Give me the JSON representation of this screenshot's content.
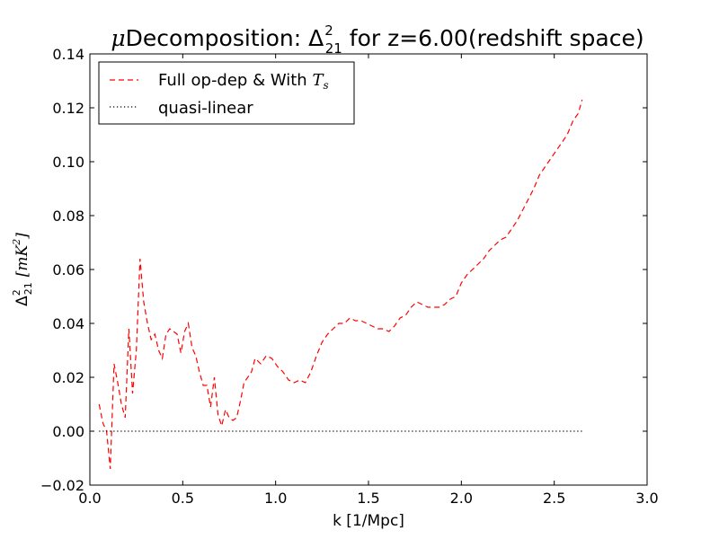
{
  "chart_data": {
    "type": "line",
    "title": {
      "prefix": "μ",
      "main": "Decomposition: ",
      "math_symbol": "Δ",
      "math_sup": "2",
      "math_sub": "21",
      "suffix": " for z=6.00(redshift space)"
    },
    "xlabel": "k [1/Mpc]",
    "ylabel": {
      "symbol": "Δ",
      "sup": "2",
      "sub": "21",
      "bracket_open": "[",
      "unit_text": "mK",
      "unit_sup": "2",
      "bracket_close": "]"
    },
    "xlim": [
      0.0,
      3.0
    ],
    "ylim": [
      -0.02,
      0.14
    ],
    "xticks": [
      {
        "value": 0.0,
        "label": "0.0"
      },
      {
        "value": 0.5,
        "label": "0.5"
      },
      {
        "value": 1.0,
        "label": "1.0"
      },
      {
        "value": 1.5,
        "label": "1.5"
      },
      {
        "value": 2.0,
        "label": "2.0"
      },
      {
        "value": 2.5,
        "label": "2.5"
      },
      {
        "value": 3.0,
        "label": "3.0"
      }
    ],
    "yticks": [
      {
        "value": -0.02,
        "label": "−0.02"
      },
      {
        "value": 0.0,
        "label": "0.00"
      },
      {
        "value": 0.02,
        "label": "0.02"
      },
      {
        "value": 0.04,
        "label": "0.04"
      },
      {
        "value": 0.06,
        "label": "0.06"
      },
      {
        "value": 0.08,
        "label": "0.08"
      },
      {
        "value": 0.1,
        "label": "0.10"
      },
      {
        "value": 0.12,
        "label": "0.12"
      },
      {
        "value": 0.14,
        "label": "0.14"
      }
    ],
    "grid": false,
    "legend_position": "top-left",
    "series": [
      {
        "name": "Full op-dep & With ",
        "name_math": "T",
        "name_math_sub": "s",
        "color": "#ff0000",
        "style": "dashed",
        "x": [
          0.05,
          0.07,
          0.09,
          0.11,
          0.13,
          0.15,
          0.17,
          0.19,
          0.21,
          0.23,
          0.25,
          0.27,
          0.29,
          0.31,
          0.33,
          0.35,
          0.37,
          0.39,
          0.41,
          0.43,
          0.45,
          0.47,
          0.49,
          0.51,
          0.53,
          0.55,
          0.57,
          0.59,
          0.61,
          0.63,
          0.65,
          0.67,
          0.69,
          0.71,
          0.73,
          0.75,
          0.77,
          0.79,
          0.81,
          0.83,
          0.85,
          0.87,
          0.89,
          0.92,
          0.95,
          0.98,
          1.01,
          1.04,
          1.07,
          1.1,
          1.13,
          1.16,
          1.19,
          1.22,
          1.25,
          1.28,
          1.31,
          1.34,
          1.37,
          1.4,
          1.43,
          1.46,
          1.49,
          1.52,
          1.55,
          1.58,
          1.61,
          1.64,
          1.67,
          1.7,
          1.73,
          1.76,
          1.79,
          1.82,
          1.85,
          1.88,
          1.91,
          1.94,
          1.97,
          2.0,
          2.03,
          2.06,
          2.09,
          2.12,
          2.15,
          2.18,
          2.21,
          2.24,
          2.27,
          2.3,
          2.33,
          2.36,
          2.39,
          2.42,
          2.45,
          2.48,
          2.51,
          2.54,
          2.57,
          2.6,
          2.63,
          2.65
        ],
        "y": [
          0.01,
          0.003,
          0.0,
          -0.014,
          0.025,
          0.018,
          0.01,
          0.005,
          0.038,
          0.014,
          0.03,
          0.064,
          0.048,
          0.04,
          0.034,
          0.036,
          0.03,
          0.027,
          0.036,
          0.038,
          0.037,
          0.036,
          0.029,
          0.037,
          0.04,
          0.031,
          0.028,
          0.022,
          0.017,
          0.017,
          0.009,
          0.02,
          0.006,
          0.002,
          0.008,
          0.005,
          0.004,
          0.005,
          0.011,
          0.018,
          0.02,
          0.022,
          0.027,
          0.025,
          0.028,
          0.027,
          0.024,
          0.022,
          0.019,
          0.018,
          0.019,
          0.018,
          0.022,
          0.028,
          0.033,
          0.036,
          0.038,
          0.04,
          0.04,
          0.042,
          0.041,
          0.041,
          0.04,
          0.039,
          0.038,
          0.038,
          0.037,
          0.039,
          0.042,
          0.043,
          0.046,
          0.048,
          0.047,
          0.046,
          0.046,
          0.046,
          0.047,
          0.049,
          0.05,
          0.055,
          0.058,
          0.06,
          0.062,
          0.064,
          0.067,
          0.069,
          0.071,
          0.072,
          0.075,
          0.078,
          0.082,
          0.086,
          0.09,
          0.095,
          0.098,
          0.101,
          0.104,
          0.107,
          0.11,
          0.115,
          0.118,
          0.123
        ]
      },
      {
        "name": "quasi-linear",
        "color": "#000000",
        "style": "dotted",
        "x": [
          0.05,
          2.65
        ],
        "y": [
          0.0,
          0.0
        ]
      }
    ]
  }
}
